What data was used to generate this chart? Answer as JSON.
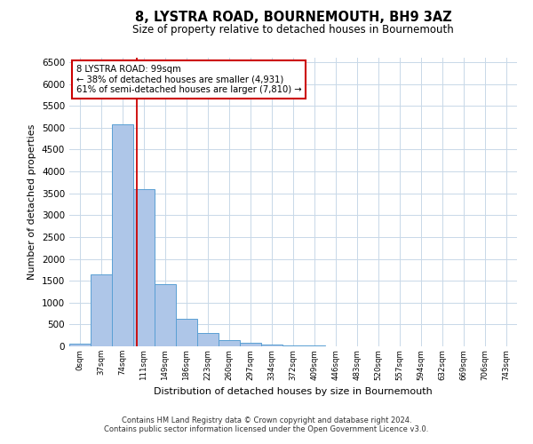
{
  "title": "8, LYSTRA ROAD, BOURNEMOUTH, BH9 3AZ",
  "subtitle": "Size of property relative to detached houses in Bournemouth",
  "xlabel": "Distribution of detached houses by size in Bournemouth",
  "ylabel": "Number of detached properties",
  "bar_color": "#aec6e8",
  "bar_edge_color": "#5a9fd4",
  "background_color": "#ffffff",
  "grid_color": "#c8d8e8",
  "annotation_line_color": "#cc0000",
  "annotation_box_edge": "#cc0000",
  "bin_labels": [
    "0sqm",
    "37sqm",
    "74sqm",
    "111sqm",
    "149sqm",
    "186sqm",
    "223sqm",
    "260sqm",
    "297sqm",
    "334sqm",
    "372sqm",
    "409sqm",
    "446sqm",
    "483sqm",
    "520sqm",
    "557sqm",
    "594sqm",
    "632sqm",
    "669sqm",
    "706sqm",
    "743sqm"
  ],
  "bar_values": [
    70,
    1640,
    5080,
    3600,
    1420,
    620,
    300,
    145,
    80,
    50,
    30,
    20,
    10,
    5,
    3,
    2,
    1,
    1,
    0,
    0,
    0
  ],
  "ylim": [
    0,
    6600
  ],
  "yticks": [
    0,
    500,
    1000,
    1500,
    2000,
    2500,
    3000,
    3500,
    4000,
    4500,
    5000,
    5500,
    6000,
    6500
  ],
  "property_label": "8 LYSTRA ROAD: 99sqm",
  "annotation_line1": "← 38% of detached houses are smaller (4,931)",
  "annotation_line2": "61% of semi-detached houses are larger (7,810) →",
  "vline_x": 2.65,
  "footnote1": "Contains HM Land Registry data © Crown copyright and database right 2024.",
  "footnote2": "Contains public sector information licensed under the Open Government Licence v3.0."
}
